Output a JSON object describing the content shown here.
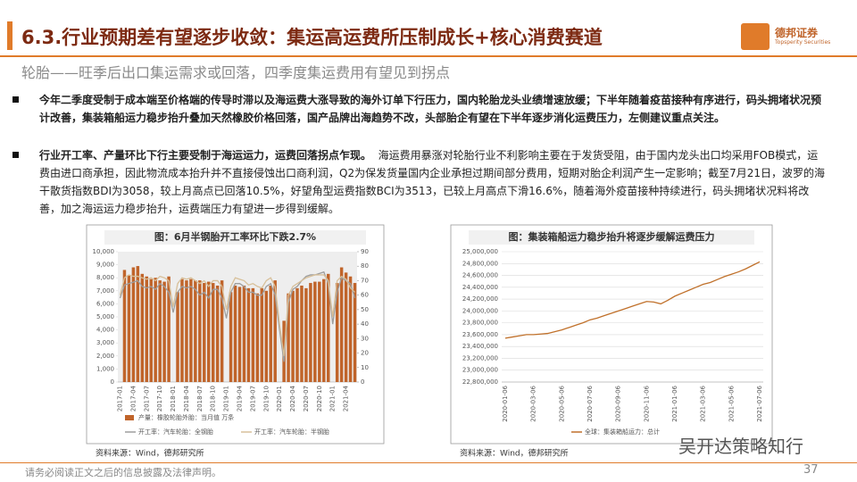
{
  "header": {
    "title": "6.3.行业预期差有望逐步收敛：集运高运费所压制成长+核心消费赛道",
    "subtitle": "轮胎——旺季后出口集运需求或回落，四季度集运费用有望见到拐点"
  },
  "logo": {
    "name": "德邦证券",
    "en": "Topsperity Securities"
  },
  "bullets": [
    {
      "lead": "今年二季度受制于成本端至价格端的传导时滞以及海运费大涨导致的海外订单下行压力，国内轮胎龙头业绩增速放缓；下半年随着疫苗接种有序进行，码头拥堵状况预计改善，集装箱船运力稳步抬升叠加天然橡胶价格回落，国产品牌出海趋势不改，头部胎企有望在下半年逐步消化运费压力，左侧建议重点关注。"
    },
    {
      "lead": "行业开工率、产量环比下行主要受制于海运运力，运费回落拐点乍现。",
      "body": "海运费用暴涨对轮胎行业不利影响主要在于发货受阻，由于国内龙头出口均采用FOB模式，运费由进口商承担，因此物流成本抬升并不直接侵蚀出口商利润，Q2为保发货量国内企业承担过期间部分费用，短期对胎企利润产生一定影响；截至7月21日，波罗的海干散货指数BDI为3058，较上月高点已回落10.5%，好望角型运费指数BCI为3513，已较上月高点下滑16.6%，随着海外疫苗接种持续进行，码头拥堵状况料将改善，加之海运运力稳步抬升，运费端压力有望进一步得到缓解。"
    }
  ],
  "chart_data": [
    {
      "type": "bar",
      "title": "图：6月半钢胎开工率环比下跌2.7%",
      "source": "资料来源：Wind，德邦研究所",
      "categories": [
        "2017-01",
        null,
        null,
        "2017-04",
        null,
        null,
        "2017-07",
        null,
        null,
        "2017-10",
        null,
        null,
        "2018-01",
        null,
        null,
        "2018-04",
        null,
        null,
        "2018-07",
        null,
        null,
        "2018-10",
        null,
        null,
        "2019-01",
        null,
        null,
        "2019-04",
        null,
        null,
        "2019-07",
        null,
        null,
        "2019-10",
        null,
        null,
        "2020-01",
        null,
        null,
        "2020-04",
        null,
        null,
        "2020-07",
        null,
        null,
        "2020-10",
        null,
        null,
        "2021-01",
        null,
        null,
        "2021-04",
        null,
        null
      ],
      "ylim": [
        0,
        10000
      ],
      "yticks": [
        0,
        {
          "value": 1000,
          "label": "1,000"
        },
        {
          "value": 2000,
          "label": "2,000"
        },
        {
          "value": 3000,
          "label": "3,000"
        },
        {
          "value": 4000,
          "label": "4,000"
        },
        {
          "value": 5000,
          "label": "5,000"
        },
        {
          "value": 6000,
          "label": "6,000"
        },
        {
          "value": 7000,
          "label": "7,000"
        },
        {
          "value": 8000,
          "label": "8,000"
        },
        {
          "value": 9000,
          "label": "9,000"
        },
        {
          "value": 10000,
          "label": "10,000"
        }
      ],
      "y2lim": [
        0,
        90
      ],
      "y2ticks": [
        0,
        10,
        20,
        30,
        40,
        50,
        60,
        70,
        80,
        90
      ],
      "grid": false,
      "series": [
        {
          "name": "产量：橡胶轮胎外胎：当月值 万条",
          "type": "bar",
          "color": "#c0642a",
          "values": [
            null,
            8600,
            8200,
            8800,
            8900,
            8300,
            8100,
            7900,
            8000,
            7800,
            7700,
            8100,
            null,
            6900,
            7900,
            7800,
            7900,
            7800,
            7800,
            7600,
            7700,
            7600,
            7400,
            7800,
            null,
            6900,
            7400,
            7300,
            7400,
            7200,
            7200,
            6800,
            7200,
            7000,
            7400,
            7800,
            null,
            4700,
            6800,
            7000,
            7200,
            7400,
            7200,
            7600,
            7700,
            7700,
            7900,
            8300,
            null,
            7600,
            8800,
            8400,
            8100,
            7600
          ]
        },
        {
          "name": "开工率：汽车轮胎：全钢胎",
          "type": "line",
          "axis": "y2",
          "color": "#9e9e9e",
          "values": [
            58,
            67,
            68,
            69,
            70,
            66,
            65,
            66,
            64,
            68,
            66,
            62,
            48,
            62,
            66,
            65,
            66,
            64,
            60,
            62,
            58,
            64,
            64,
            58,
            44,
            62,
            68,
            68,
            66,
            62,
            62,
            60,
            60,
            66,
            68,
            60,
            36,
            14,
            55,
            64,
            66,
            70,
            73,
            74,
            74,
            75,
            76,
            68,
            40,
            62,
            72,
            70,
            68,
            58
          ]
        },
        {
          "name": "开工率：汽车轮胎：半钢胎",
          "type": "line",
          "axis": "y2",
          "color": "#d8c09a",
          "values": [
            60,
            72,
            74,
            73,
            73,
            72,
            71,
            72,
            70,
            73,
            72,
            70,
            52,
            68,
            72,
            71,
            72,
            70,
            68,
            70,
            66,
            70,
            70,
            66,
            50,
            66,
            72,
            71,
            70,
            67,
            68,
            66,
            65,
            70,
            72,
            66,
            40,
            18,
            60,
            66,
            68,
            70,
            72,
            73,
            74,
            74,
            74,
            70,
            45,
            70,
            73,
            71,
            65,
            62
          ]
        }
      ]
    },
    {
      "type": "line",
      "title": "图：集装箱船运力稳步抬升将逐步缓解运费压力",
      "source": "资料来源：Wind，德邦研究所",
      "categories": [
        "2020-01-06",
        null,
        null,
        null,
        "2020-03-06",
        null,
        null,
        null,
        "2020-05-06",
        null,
        null,
        null,
        "2020-07-06",
        null,
        null,
        null,
        "2020-09-06",
        null,
        null,
        null,
        "2020-11-06",
        null,
        null,
        null,
        "2021-01-06",
        null,
        null,
        null,
        "2021-03-06",
        null,
        null,
        null,
        "2021-05-06",
        null,
        null,
        null,
        "2021-07-06"
      ],
      "ylim": [
        22800000,
        25000000
      ],
      "yticks": [
        {
          "value": 22800000,
          "label": "22,800,000"
        },
        {
          "value": 23000000,
          "label": "23,000,000"
        },
        {
          "value": 23200000,
          "label": "23,200,000"
        },
        {
          "value": 23400000,
          "label": "23,400,000"
        },
        {
          "value": 23600000,
          "label": "23,600,000"
        },
        {
          "value": 23800000,
          "label": "23,800,000"
        },
        {
          "value": 24000000,
          "label": "24,000,000"
        },
        {
          "value": 24200000,
          "label": "24,200,000"
        },
        {
          "value": 24400000,
          "label": "24,400,000"
        },
        {
          "value": 24600000,
          "label": "24,600,000"
        },
        {
          "value": 24800000,
          "label": "24,800,000"
        },
        {
          "value": 25000000,
          "label": "25,000,000"
        }
      ],
      "grid": true,
      "series": [
        {
          "name": "全球：集装箱船运力：总计",
          "type": "line",
          "color": "#c0702a",
          "values": [
            23540000,
            23560000,
            23580000,
            23600000,
            23600000,
            23610000,
            23620000,
            23650000,
            23680000,
            23720000,
            23760000,
            23800000,
            23850000,
            23880000,
            23920000,
            23960000,
            24000000,
            24040000,
            24080000,
            24120000,
            24160000,
            24150000,
            24120000,
            24180000,
            24250000,
            24300000,
            24350000,
            24400000,
            24450000,
            24480000,
            24530000,
            24580000,
            24620000,
            24660000,
            24710000,
            24770000,
            24830000
          ]
        }
      ]
    }
  ],
  "watermark": "吴开达策略知行",
  "footer": {
    "disclaimer": "请务必阅读正文之后的信息披露及法律声明。",
    "page": "37"
  }
}
